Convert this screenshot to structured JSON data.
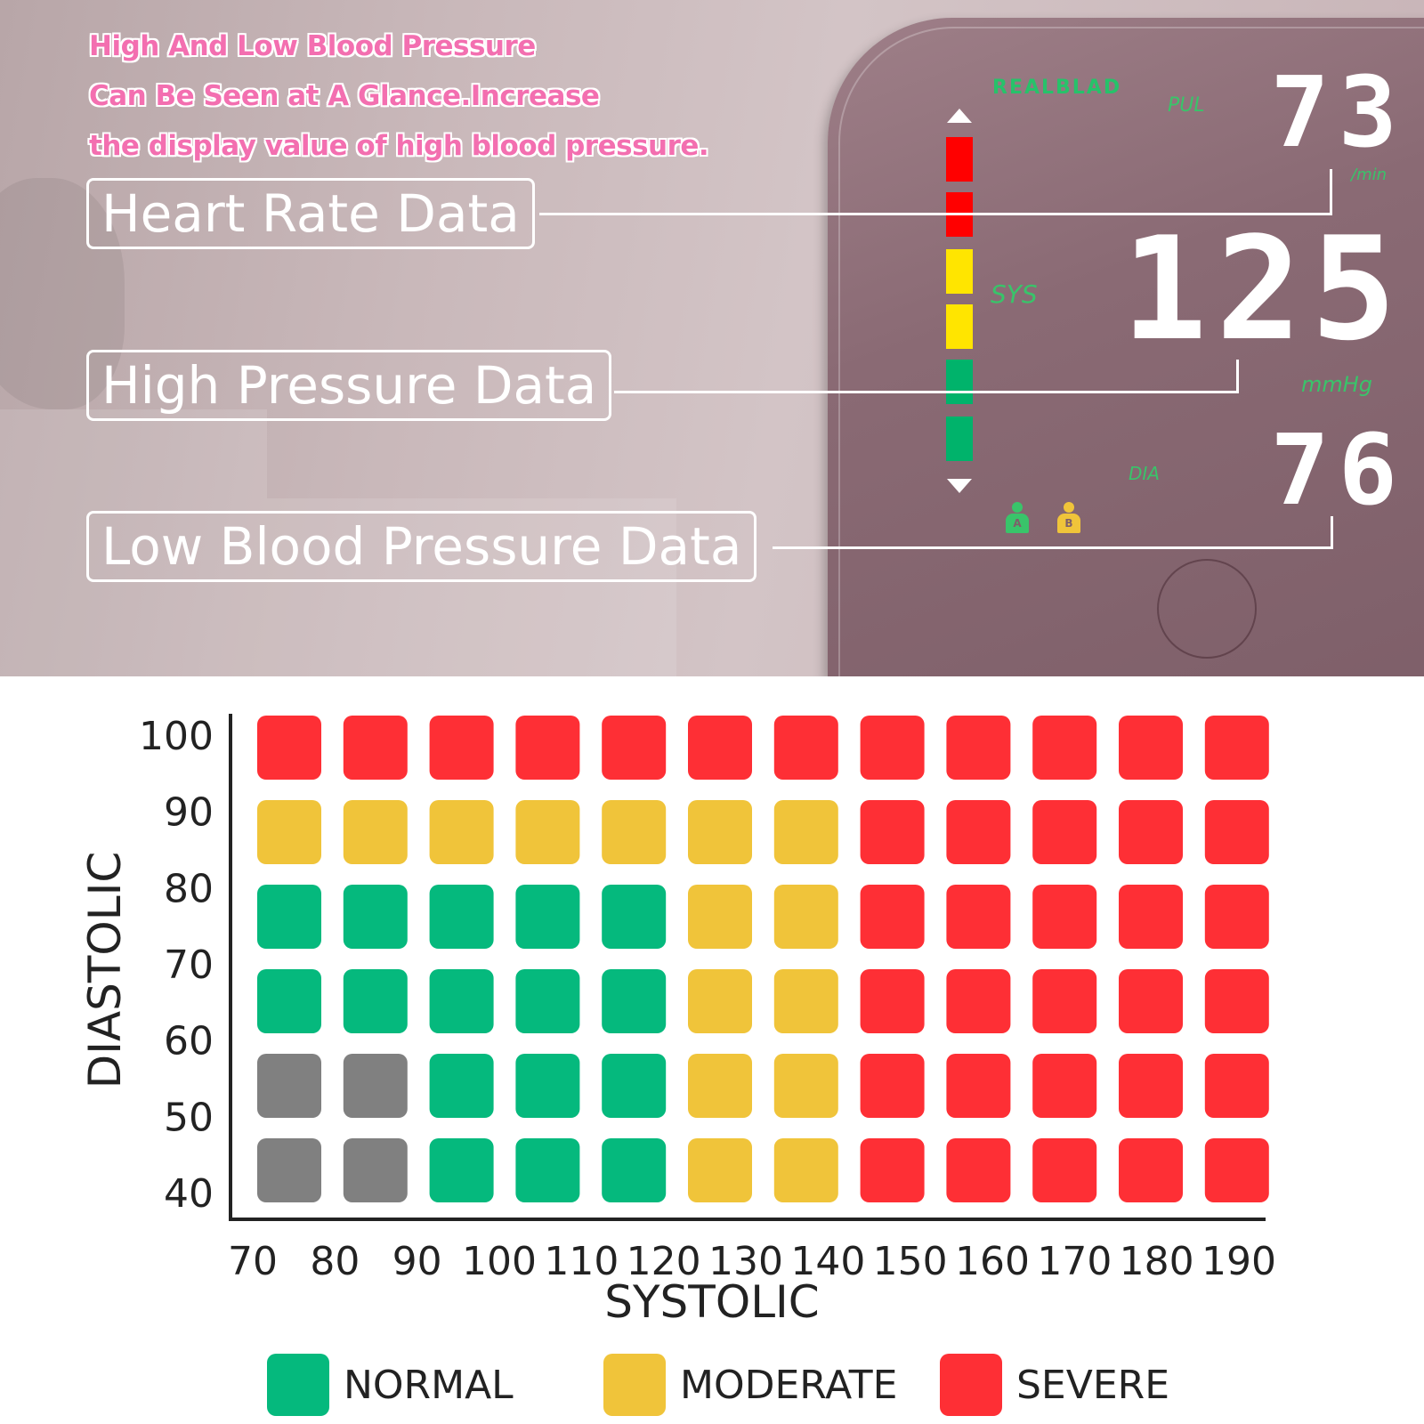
{
  "banner": {
    "headline": [
      "High And Low Blood Pressure",
      "Can Be Seen at A Glance.Increase",
      "the display value of high blood pressure."
    ],
    "callouts": {
      "heart_rate": "Heart Rate Data",
      "high_pressure": "High Pressure Data",
      "low_pressure": "Low Blood Pressure Data"
    },
    "device": {
      "brand": "REALBLAD",
      "pul_label": "PUL",
      "pul_value": "73",
      "pul_unit": "/min",
      "sys_label": "SYS",
      "sys_value": "125",
      "sys_unit": "mmHg",
      "dia_label": "DIA",
      "dia_value": "76",
      "user_a": "A",
      "user_b": "B",
      "indicator_colors": [
        "#ff0000",
        "#ff0000",
        "#ffe500",
        "#ffe500",
        "#00b36b",
        "#00b36b"
      ]
    }
  },
  "chart_data": {
    "type": "heatmap",
    "xlabel": "SYSTOLIC",
    "ylabel": "DIASTOLIC",
    "x": [
      70,
      80,
      90,
      100,
      110,
      120,
      130,
      140,
      150,
      160,
      170,
      180,
      190
    ],
    "y": [
      100,
      90,
      80,
      70,
      60,
      50,
      40
    ],
    "rows": [
      [
        "severe",
        "severe",
        "severe",
        "severe",
        "severe",
        "severe",
        "severe",
        "severe",
        "severe",
        "severe",
        "severe",
        "severe"
      ],
      [
        "moderate",
        "moderate",
        "moderate",
        "moderate",
        "moderate",
        "moderate",
        "moderate",
        "severe",
        "severe",
        "severe",
        "severe",
        "severe"
      ],
      [
        "normal",
        "normal",
        "normal",
        "normal",
        "normal",
        "moderate",
        "moderate",
        "severe",
        "severe",
        "severe",
        "severe",
        "severe"
      ],
      [
        "normal",
        "normal",
        "normal",
        "normal",
        "normal",
        "moderate",
        "moderate",
        "severe",
        "severe",
        "severe",
        "severe",
        "severe"
      ],
      [
        "low",
        "low",
        "normal",
        "normal",
        "normal",
        "moderate",
        "moderate",
        "severe",
        "severe",
        "severe",
        "severe",
        "severe"
      ],
      [
        "low",
        "low",
        "normal",
        "normal",
        "normal",
        "moderate",
        "moderate",
        "severe",
        "severe",
        "severe",
        "severe",
        "severe"
      ]
    ],
    "colors": {
      "normal": "#05b97d",
      "moderate": "#f0c43a",
      "severe": "#fe2f35",
      "low": "#808080"
    },
    "legend": [
      {
        "key": "normal",
        "label": "NORMAL"
      },
      {
        "key": "moderate",
        "label": "MODERATE"
      },
      {
        "key": "severe",
        "label": "SEVERE"
      }
    ]
  }
}
